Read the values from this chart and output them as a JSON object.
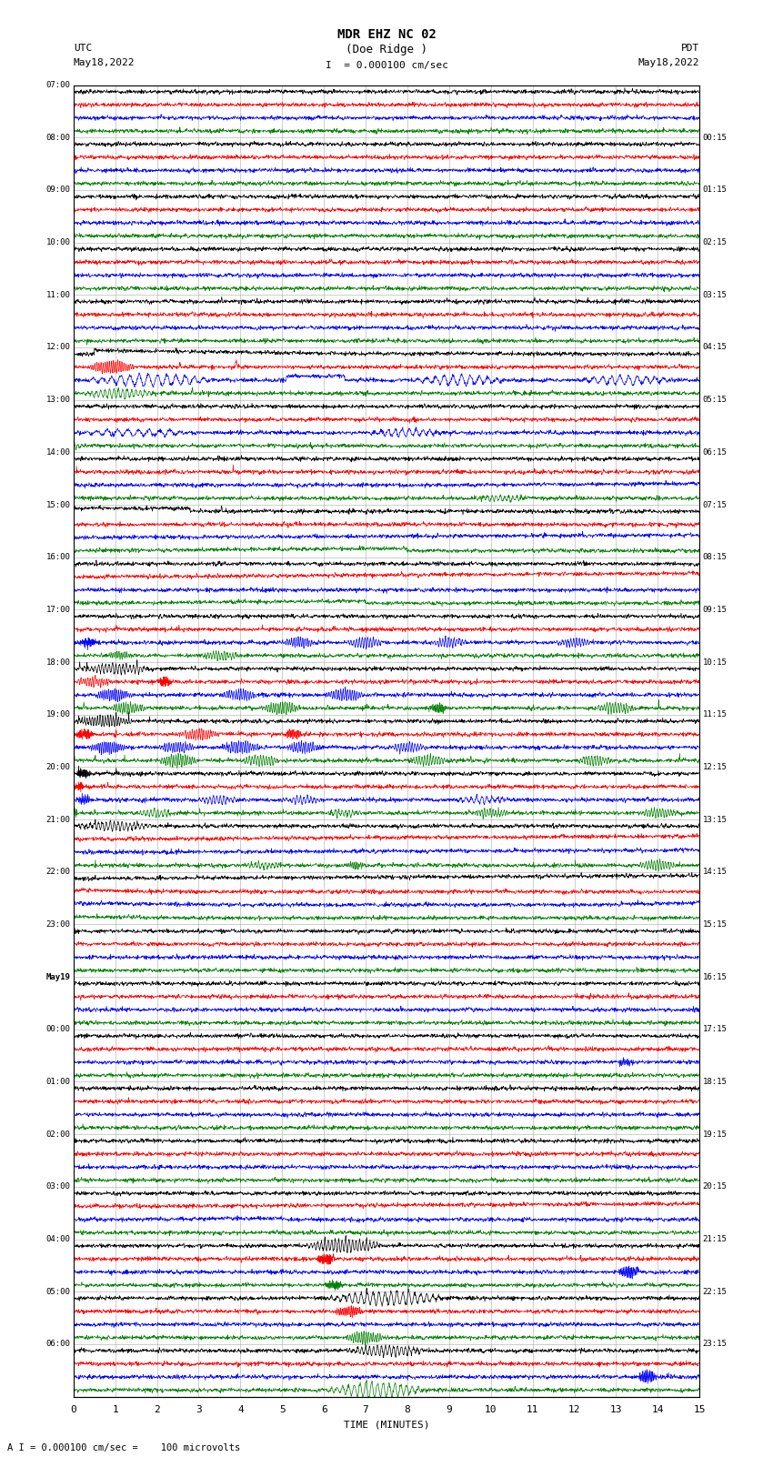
{
  "title_line1": "MDR EHZ NC 02",
  "title_line2": "(Doe Ridge )",
  "scale_label": "I  = 0.000100 cm/sec",
  "footer_label": "A I = 0.000100 cm/sec =    100 microvolts",
  "utc_label": "UTC",
  "pdt_label": "PDT",
  "date_left": "May18,2022",
  "date_right": "May18,2022",
  "xlabel": "TIME (MINUTES)",
  "left_times": [
    "07:00",
    "08:00",
    "09:00",
    "10:00",
    "11:00",
    "12:00",
    "13:00",
    "14:00",
    "15:00",
    "16:00",
    "17:00",
    "18:00",
    "19:00",
    "20:00",
    "21:00",
    "22:00",
    "23:00",
    "May19",
    "00:00",
    "01:00",
    "02:00",
    "03:00",
    "04:00",
    "05:00",
    "06:00"
  ],
  "right_times": [
    "00:15",
    "01:15",
    "02:15",
    "03:15",
    "04:15",
    "05:15",
    "06:15",
    "07:15",
    "08:15",
    "09:15",
    "10:15",
    "11:15",
    "12:15",
    "13:15",
    "14:15",
    "15:15",
    "16:15",
    "17:15",
    "18:15",
    "19:15",
    "20:15",
    "21:15",
    "22:15",
    "23:15"
  ],
  "colors": [
    "black",
    "red",
    "blue",
    "green"
  ],
  "bg_color": "#ffffff",
  "grid_color": "#aaaaaa",
  "n_rows": 25,
  "n_traces_per_row": 4,
  "x_min": 0,
  "x_max": 15,
  "x_ticks": [
    0,
    1,
    2,
    3,
    4,
    5,
    6,
    7,
    8,
    9,
    10,
    11,
    12,
    13,
    14,
    15
  ],
  "figsize": [
    8.5,
    16.13
  ],
  "dpi": 100
}
